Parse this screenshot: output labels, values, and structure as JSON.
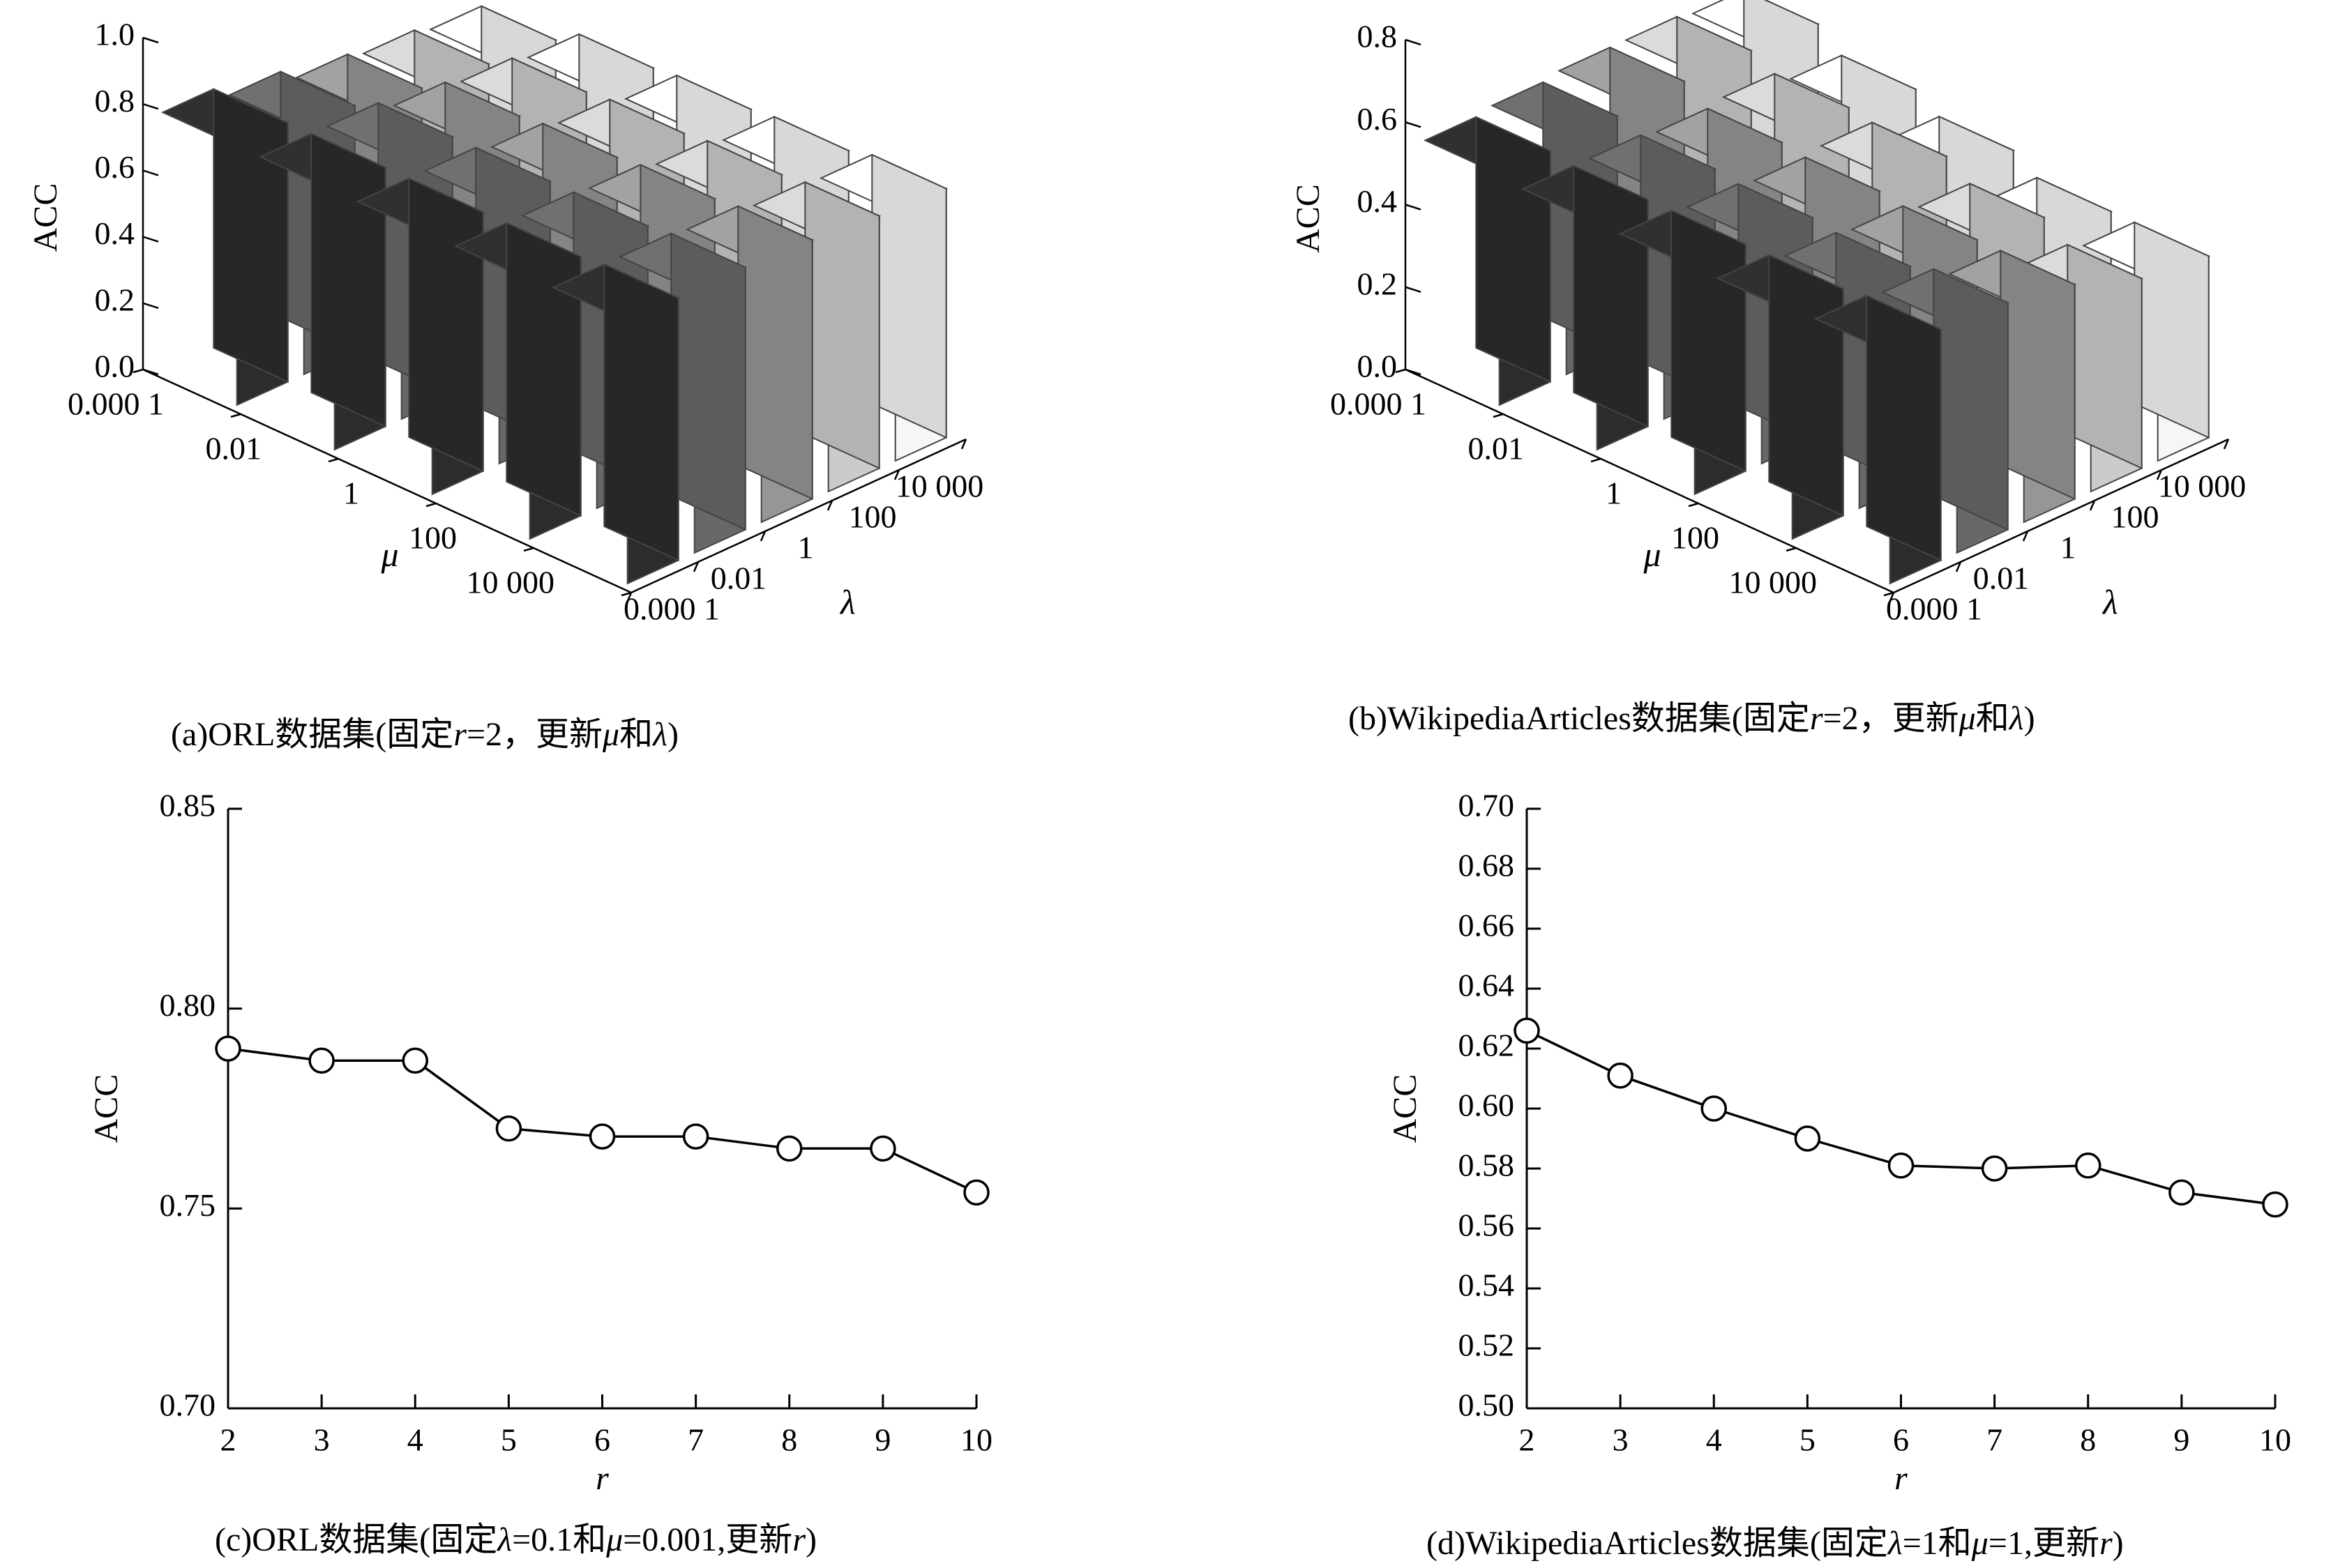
{
  "chart_data": [
    {
      "id": "a",
      "type": "bar3d",
      "caption": {
        "pre": "(a)ORL数据集(固定",
        "v1": "r",
        "mid1": "=2，更新",
        "v2": "μ",
        "mid2": "和",
        "v3": "λ",
        "post": ")"
      },
      "ylabel": "ACC",
      "mu_label": "μ",
      "lambda_label": "λ",
      "mu_ticks": [
        "0.000 1",
        "0.01",
        "1",
        "100",
        "10 000"
      ],
      "lambda_ticks": [
        "0.000 1",
        "0.01",
        "1",
        "100",
        "10 000"
      ],
      "y_ticks": [
        "0.0",
        "0.2",
        "0.4",
        "0.6",
        "0.8",
        "1.0"
      ],
      "ylim": [
        0,
        1.0
      ],
      "values": [
        [
          0.78,
          0.74,
          0.7,
          0.68,
          0.66
        ],
        [
          0.78,
          0.78,
          0.75,
          0.73,
          0.71
        ],
        [
          0.78,
          0.78,
          0.76,
          0.74,
          0.72
        ],
        [
          0.78,
          0.78,
          0.77,
          0.75,
          0.73
        ],
        [
          0.79,
          0.79,
          0.78,
          0.76,
          0.75
        ]
      ],
      "colors": [
        "#2c2c2c",
        "#686868",
        "#969696",
        "#cbcbcb",
        "#f6f6f6"
      ]
    },
    {
      "id": "b",
      "type": "bar3d",
      "caption": {
        "pre": "(b)WikipediaArticles数据集(固定",
        "v1": "r",
        "mid1": "=2，更新",
        "v2": "μ",
        "mid2": "和",
        "v3": "λ",
        "post": ")"
      },
      "ylabel": "ACC",
      "mu_label": "μ",
      "lambda_label": "λ",
      "mu_ticks": [
        "0.000 1",
        "0.01",
        "1",
        "100",
        "10 000"
      ],
      "lambda_ticks": [
        "0.000 1",
        "0.01",
        "1",
        "100",
        "10 000"
      ],
      "y_ticks": [
        "0.0",
        "0.2",
        "0.4",
        "0.6",
        "0.8"
      ],
      "ylim": [
        0,
        0.8
      ],
      "values": [
        [
          0.56,
          0.57,
          0.58,
          0.58,
          0.57
        ],
        [
          0.55,
          0.55,
          0.54,
          0.55,
          0.52
        ],
        [
          0.55,
          0.54,
          0.53,
          0.54,
          0.48
        ],
        [
          0.55,
          0.53,
          0.52,
          0.5,
          0.44
        ],
        [
          0.56,
          0.55,
          0.52,
          0.46,
          0.44
        ]
      ],
      "colors": [
        "#2c2c2c",
        "#686868",
        "#969696",
        "#cbcbcb",
        "#f6f6f6"
      ]
    },
    {
      "id": "c",
      "type": "line",
      "caption": {
        "pre": "(c)ORL数据集(固定",
        "v1": "λ",
        "mid1": "=0.1和",
        "v2": "μ",
        "mid2": "=0.001,更新",
        "v3": "r",
        "post": ")"
      },
      "ylabel": "ACC",
      "xlabel": "r",
      "x": [
        2,
        3,
        4,
        5,
        6,
        7,
        8,
        9,
        10
      ],
      "y": [
        0.79,
        0.787,
        0.787,
        0.77,
        0.768,
        0.768,
        0.765,
        0.765,
        0.754
      ],
      "xlim": [
        2,
        10
      ],
      "ylim": [
        0.7,
        0.85
      ],
      "y_ticks": [
        "0.70",
        "0.75",
        "0.80",
        "0.85"
      ],
      "x_ticks": [
        "2",
        "3",
        "4",
        "5",
        "6",
        "7",
        "8",
        "9",
        "10"
      ]
    },
    {
      "id": "d",
      "type": "line",
      "caption": {
        "pre": "(d)WikipediaArticles数据集(固定",
        "v1": "λ",
        "mid1": "=1和",
        "v2": "μ",
        "mid2": "=1,更新",
        "v3": "r",
        "post": ")"
      },
      "ylabel": "ACC",
      "xlabel": "r",
      "x": [
        2,
        3,
        4,
        5,
        6,
        7,
        8,
        9,
        10
      ],
      "y": [
        0.626,
        0.611,
        0.6,
        0.59,
        0.581,
        0.58,
        0.581,
        0.572,
        0.568
      ],
      "xlim": [
        2,
        10
      ],
      "ylim": [
        0.5,
        0.7
      ],
      "y_ticks": [
        "0.50",
        "0.52",
        "0.54",
        "0.56",
        "0.58",
        "0.60",
        "0.62",
        "0.64",
        "0.66",
        "0.68",
        "0.70"
      ],
      "x_ticks": [
        "2",
        "3",
        "4",
        "5",
        "6",
        "7",
        "8",
        "9",
        "10"
      ]
    }
  ]
}
